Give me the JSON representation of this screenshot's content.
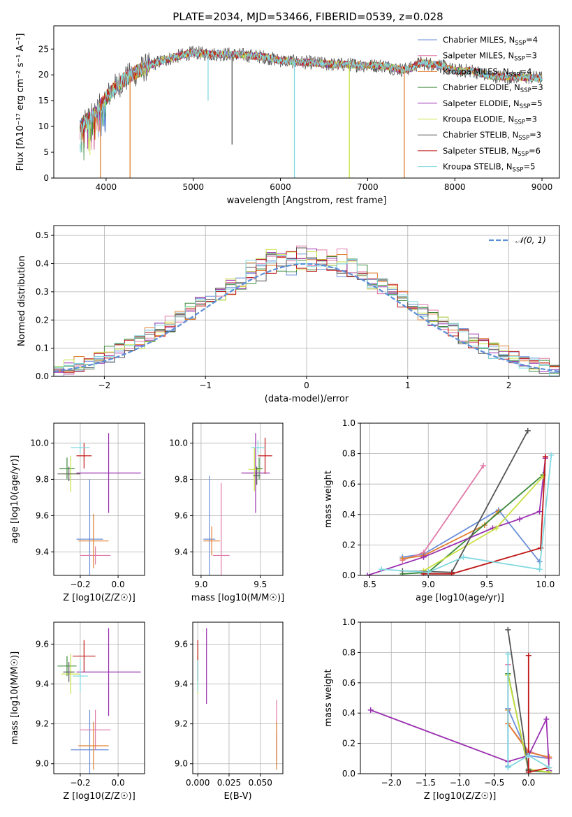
{
  "figure_title": "PLATE=2034, MJD=53466, FIBERID=0539, z=0.028",
  "colors": {
    "Chabrier MILES": "#6a8fd8",
    "Salpeter MILES": "#e07aa8",
    "Kroupa MILES": "#e08030",
    "Chabrier ELODIE": "#3a8a3a",
    "Salpeter ELODIE": "#9a30b0",
    "Kroupa ELODIE": "#c8e040",
    "Chabrier STELIB": "#555555",
    "Salpeter STELIB": "#c01818",
    "Kroupa STELIB": "#80d8e0",
    "normal": "#5b8fd8"
  },
  "chart_data": [
    {
      "id": "spectrum",
      "type": "line",
      "xlabel": "wavelength [Angstrom, rest frame]",
      "ylabel": "Flux [fλ10⁻¹⁷ erg cm⁻² s⁻¹ A⁻¹]",
      "xlim": [
        3400,
        9200
      ],
      "ylim": [
        0,
        29.5
      ],
      "xticks": [
        4000,
        5000,
        6000,
        7000,
        8000,
        9000
      ],
      "yticks": [
        0,
        5,
        10,
        15,
        20,
        25
      ],
      "legend_position": "top-right",
      "series": [
        {
          "name": "Chabrier MILES, N_SSP=4",
          "color_key": "Chabrier MILES"
        },
        {
          "name": "Salpeter MILES, N_SSP=3",
          "color_key": "Salpeter MILES"
        },
        {
          "name": "Kroupa MILES, N_SSP=4",
          "color_key": "Kroupa MILES"
        },
        {
          "name": "Chabrier ELODIE, N_SSP=3",
          "color_key": "Chabrier ELODIE"
        },
        {
          "name": "Salpeter ELODIE, N_SSP=5",
          "color_key": "Salpeter ELODIE"
        },
        {
          "name": "Kroupa ELODIE, N_SSP=3",
          "color_key": "Kroupa ELODIE"
        },
        {
          "name": "Chabrier STELIB, N_SSP=3",
          "color_key": "Chabrier STELIB"
        },
        {
          "name": "Salpeter STELIB, N_SSP=6",
          "color_key": "Salpeter STELIB"
        },
        {
          "name": "Kroupa STELIB, N_SSP=5",
          "color_key": "Kroupa STELIB"
        }
      ],
      "continuum": {
        "x": [
          3700,
          3800,
          3900,
          4000,
          4100,
          4200,
          4300,
          4400,
          4500,
          4600,
          4800,
          5000,
          5200,
          5400,
          5600,
          5800,
          6000,
          6200,
          6400,
          6600,
          6800,
          7000,
          7200,
          7300,
          7400,
          7500,
          7600,
          7800,
          8000,
          8200,
          8400,
          8600,
          8800,
          9000
        ],
        "y": [
          10,
          11.5,
          13,
          15.5,
          17.5,
          19,
          20,
          21,
          21.8,
          22.5,
          23.5,
          24.3,
          24,
          24,
          23.8,
          23.5,
          22.8,
          22.5,
          22.3,
          22,
          22,
          21.8,
          21.8,
          21.3,
          21,
          21.3,
          22.3,
          22,
          20.8,
          20.8,
          19.8,
          19.6,
          19.5,
          19.4
        ]
      },
      "spikes": [
        {
          "x": 3935,
          "y": 0
        },
        {
          "x": 4275,
          "y": 0
        },
        {
          "x": 5170,
          "y": 15
        },
        {
          "x": 5445,
          "y": 6.5
        },
        {
          "x": 6160,
          "y": 0
        },
        {
          "x": 6790,
          "y": 0
        },
        {
          "x": 7420,
          "y": 0
        }
      ]
    },
    {
      "id": "residuals",
      "type": "histogram",
      "xlabel": "(data-model)/error",
      "ylabel": "Normed distribution",
      "xlim": [
        -2.5,
        2.5
      ],
      "ylim": [
        0,
        0.535
      ],
      "xticks": [
        -2,
        -1,
        0,
        1,
        2
      ],
      "yticks": [
        0.0,
        0.1,
        0.2,
        0.3,
        0.4,
        0.5
      ],
      "grid": true,
      "legend_position": "top-right",
      "reference_label": "𝒩(0, 1)",
      "bin_width": 0.1,
      "model_count": 9
    },
    {
      "id": "age-vs-Z",
      "type": "errorbar",
      "xlabel": "Z [log10(Z/Z☉)]",
      "ylabel": "age  [log10(age/yr)]",
      "xlim": [
        -0.34,
        0.14
      ],
      "ylim": [
        9.27,
        10.11
      ],
      "xticks": [
        -0.2,
        0.0
      ],
      "yticks": [
        9.4,
        9.6,
        9.8,
        10.0
      ],
      "grid": true,
      "points": [
        {
          "model": "Chabrier MILES",
          "x": -0.15,
          "y": 9.47,
          "xerr": 0.07,
          "yerr": 0.33
        },
        {
          "model": "Salpeter MILES",
          "x": -0.12,
          "y": 9.38,
          "xerr": 0.08,
          "yerr": 0.05
        },
        {
          "model": "Kroupa MILES",
          "x": -0.13,
          "y": 9.46,
          "xerr": 0.08,
          "yerr": 0.15
        },
        {
          "model": "Chabrier ELODIE",
          "x": -0.27,
          "y": 9.86,
          "xerr": 0.04,
          "yerr": 0.06
        },
        {
          "model": "Salpeter ELODIE",
          "x": -0.05,
          "y": 9.835,
          "xerr": 0.17,
          "yerr": 0.22
        },
        {
          "model": "Kroupa ELODIE",
          "x": -0.25,
          "y": 9.83,
          "xerr": 0.05,
          "yerr": 0.1
        },
        {
          "model": "Chabrier STELIB",
          "x": -0.26,
          "y": 9.83,
          "xerr": 0.06,
          "yerr": 0.04
        },
        {
          "model": "Salpeter STELIB",
          "x": -0.18,
          "y": 9.93,
          "xerr": 0.04,
          "yerr": 0.07
        },
        {
          "model": "Kroupa STELIB",
          "x": -0.2,
          "y": 9.975,
          "xerr": 0.05,
          "yerr": 0.03
        }
      ]
    },
    {
      "id": "age-vs-mass",
      "type": "errorbar",
      "xlabel": "mass [log10(M/M☉)]",
      "ylabel": "",
      "xlim": [
        8.93,
        9.69
      ],
      "ylim": [
        9.27,
        10.11
      ],
      "xticks": [
        9.0,
        9.5
      ],
      "yticks": [
        9.4,
        9.6,
        9.8,
        10.0
      ],
      "grid": true,
      "points": [
        {
          "model": "Chabrier MILES",
          "x": 9.07,
          "y": 9.47,
          "xerr": 0.05,
          "yerr": 0.35
        },
        {
          "model": "Salpeter MILES",
          "x": 9.17,
          "y": 9.38,
          "xerr": 0.07,
          "yerr": 0.4
        },
        {
          "model": "Kroupa MILES",
          "x": 9.09,
          "y": 9.46,
          "xerr": 0.07,
          "yerr": 0.08
        },
        {
          "model": "Chabrier ELODIE",
          "x": 9.49,
          "y": 9.86,
          "xerr": 0.03,
          "yerr": 0.06
        },
        {
          "model": "Salpeter ELODIE",
          "x": 9.46,
          "y": 9.835,
          "xerr": 0.12,
          "yerr": 0.22
        },
        {
          "model": "Kroupa ELODIE",
          "x": 9.45,
          "y": 9.855,
          "xerr": 0.05,
          "yerr": 0.12
        },
        {
          "model": "Chabrier STELIB",
          "x": 9.47,
          "y": 9.82,
          "xerr": 0.03,
          "yerr": 0.05
        },
        {
          "model": "Salpeter STELIB",
          "x": 9.54,
          "y": 9.93,
          "xerr": 0.06,
          "yerr": 0.1
        },
        {
          "model": "Kroupa STELIB",
          "x": 9.48,
          "y": 9.975,
          "xerr": 0.06,
          "yerr": 0.04
        }
      ]
    },
    {
      "id": "weight-vs-age",
      "type": "line",
      "xlabel": "age  [log10(age/yr)]",
      "ylabel": "mass weight",
      "xlim": [
        8.42,
        10.12
      ],
      "ylim": [
        0,
        1.0
      ],
      "xticks": [
        8.5,
        9.0,
        9.5,
        10.0
      ],
      "yticks": [
        0.0,
        0.2,
        0.4,
        0.6,
        0.8,
        1.0
      ],
      "grid": true,
      "series": [
        {
          "model": "Chabrier MILES",
          "x": [
            8.78,
            8.96,
            9.6,
            9.95
          ],
          "y": [
            0.12,
            0.14,
            0.43,
            0.09
          ]
        },
        {
          "model": "Salpeter MILES",
          "x": [
            8.78,
            8.96,
            9.47
          ],
          "y": [
            0.1,
            0.15,
            0.72
          ]
        },
        {
          "model": "Kroupa MILES",
          "x": [
            8.78,
            8.96,
            9.48,
            9.6
          ],
          "y": [
            0.11,
            0.13,
            0.33,
            0.42
          ]
        },
        {
          "model": "Chabrier ELODIE",
          "x": [
            8.78,
            9.0,
            9.98
          ],
          "y": [
            0.01,
            0.02,
            0.66
          ]
        },
        {
          "model": "Salpeter ELODIE",
          "x": [
            8.48,
            8.96,
            9.55,
            9.78,
            9.95,
            10.0
          ],
          "y": [
            0.0,
            0.12,
            0.31,
            0.37,
            0.42,
            0.77
          ]
        },
        {
          "model": "Kroupa ELODIE",
          "x": [
            8.96,
            9.58,
            9.98
          ],
          "y": [
            0.03,
            0.31,
            0.65
          ]
        },
        {
          "model": "Chabrier STELIB",
          "x": [
            8.78,
            9.2,
            9.85
          ],
          "y": [
            0.03,
            0.02,
            0.95
          ]
        },
        {
          "model": "Salpeter STELIB",
          "x": [
            8.96,
            9.2,
            9.96,
            10.0
          ],
          "y": [
            0.01,
            0.01,
            0.18,
            0.78
          ]
        },
        {
          "model": "Kroupa STELIB",
          "x": [
            8.6,
            9.0,
            9.3,
            9.95,
            10.05
          ],
          "y": [
            0.04,
            0.02,
            0.12,
            0.04,
            0.79
          ]
        }
      ]
    },
    {
      "id": "mass-vs-Z",
      "type": "errorbar",
      "xlabel": "Z [log10(Z/Z☉)]",
      "ylabel": "mass [log10(M/M☉)]",
      "xlim": [
        -0.34,
        0.14
      ],
      "ylim": [
        8.95,
        9.71
      ],
      "xticks": [
        -0.2,
        0.0
      ],
      "yticks": [
        9.0,
        9.2,
        9.4,
        9.6
      ],
      "grid": true,
      "points": [
        {
          "model": "Chabrier MILES",
          "x": -0.15,
          "y": 9.07,
          "xerr": 0.1,
          "yerr": 0.2
        },
        {
          "model": "Salpeter MILES",
          "x": -0.12,
          "y": 9.17,
          "xerr": 0.08,
          "yerr": 0.1
        },
        {
          "model": "Kroupa MILES",
          "x": -0.13,
          "y": 9.09,
          "xerr": 0.08,
          "yerr": 0.12
        },
        {
          "model": "Chabrier ELODIE",
          "x": -0.27,
          "y": 9.49,
          "xerr": 0.05,
          "yerr": 0.05
        },
        {
          "model": "Salpeter ELODIE",
          "x": -0.05,
          "y": 9.46,
          "xerr": 0.17,
          "yerr": 0.22
        },
        {
          "model": "Kroupa ELODIE",
          "x": -0.25,
          "y": 9.45,
          "xerr": 0.05,
          "yerr": 0.1
        },
        {
          "model": "Chabrier STELIB",
          "x": -0.26,
          "y": 9.46,
          "xerr": 0.03,
          "yerr": 0.05
        },
        {
          "model": "Salpeter STELIB",
          "x": -0.18,
          "y": 9.54,
          "xerr": 0.06,
          "yerr": 0.08
        },
        {
          "model": "Kroupa STELIB",
          "x": -0.2,
          "y": 9.44,
          "xerr": 0.04,
          "yerr": 0.08
        }
      ]
    },
    {
      "id": "mass-vs-EBV",
      "type": "errorbar",
      "xlabel": "E(B-V)",
      "ylabel": "",
      "xlim": [
        -0.004,
        0.068
      ],
      "ylim": [
        8.95,
        9.71
      ],
      "xticks": [
        0.0,
        0.025,
        0.05
      ],
      "yticks": [
        9.0,
        9.2,
        9.4,
        9.6
      ],
      "grid": true,
      "points": [
        {
          "model": "Chabrier MILES",
          "x": 0.063,
          "y": 9.07,
          "xerr": 0,
          "yerr": 0.08
        },
        {
          "model": "Salpeter MILES",
          "x": 0.063,
          "y": 9.17,
          "xerr": 0,
          "yerr": 0.15
        },
        {
          "model": "Kroupa MILES",
          "x": 0.063,
          "y": 9.09,
          "xerr": 0,
          "yerr": 0.12
        },
        {
          "model": "Chabrier ELODIE",
          "x": 0.0,
          "y": 9.49,
          "xerr": 0,
          "yerr": 0.05
        },
        {
          "model": "Salpeter ELODIE",
          "x": 0.007,
          "y": 9.49,
          "xerr": 0,
          "yerr": 0.19
        },
        {
          "model": "Kroupa ELODIE",
          "x": 0.0,
          "y": 9.45,
          "xerr": 0,
          "yerr": 0.1
        },
        {
          "model": "Chabrier STELIB",
          "x": 0.0,
          "y": 9.46,
          "xerr": 0,
          "yerr": 0.05
        },
        {
          "model": "Salpeter STELIB",
          "x": 0.0,
          "y": 9.52,
          "xerr": 0,
          "yerr": 0.1
        },
        {
          "model": "Kroupa STELIB",
          "x": 0.0,
          "y": 9.44,
          "xerr": 0,
          "yerr": 0.08
        }
      ]
    },
    {
      "id": "weight-vs-Z",
      "type": "line",
      "xlabel": "Z [log10(Z/Z☉)]",
      "ylabel": "mass weight",
      "xlim": [
        -2.45,
        0.45
      ],
      "ylim": [
        0,
        1.0
      ],
      "xticks": [
        -2.0,
        -1.5,
        -1.0,
        -0.5,
        0.0
      ],
      "yticks": [
        0.0,
        0.2,
        0.4,
        0.6,
        0.8,
        1.0
      ],
      "grid": true,
      "series": [
        {
          "model": "Chabrier MILES",
          "x": [
            -0.3,
            -0.3,
            0.0,
            0.3
          ],
          "y": [
            0.05,
            0.43,
            0.12,
            0.1
          ]
        },
        {
          "model": "Salpeter MILES",
          "x": [
            -0.3,
            -0.3,
            0.0,
            0.3
          ],
          "y": [
            0.72,
            0.33,
            0.15,
            0.1
          ]
        },
        {
          "model": "Kroupa MILES",
          "x": [
            -0.3,
            -0.3,
            0.0,
            0.3
          ],
          "y": [
            0.42,
            0.33,
            0.14,
            0.11
          ]
        },
        {
          "model": "Chabrier ELODIE",
          "x": [
            -0.3,
            0.0,
            0.3
          ],
          "y": [
            0.66,
            0.02,
            0.01
          ]
        },
        {
          "model": "Salpeter ELODIE",
          "x": [
            -2.3,
            -0.3,
            0.0,
            0.26,
            0.3
          ],
          "y": [
            0.42,
            0.08,
            0.12,
            0.36,
            0.02
          ]
        },
        {
          "model": "Kroupa ELODIE",
          "x": [
            -0.3,
            0.0,
            0.3
          ],
          "y": [
            0.65,
            0.03,
            0.01
          ]
        },
        {
          "model": "Chabrier STELIB",
          "x": [
            -0.3,
            0.0,
            0.0
          ],
          "y": [
            0.95,
            0.02,
            0.03
          ]
        },
        {
          "model": "Salpeter STELIB",
          "x": [
            0.0,
            0.0,
            0.3
          ],
          "y": [
            0.78,
            0.01,
            0.04
          ]
        },
        {
          "model": "Kroupa STELIB",
          "x": [
            -0.3,
            -0.3,
            0.0,
            0.3
          ],
          "y": [
            0.79,
            0.04,
            0.12,
            0.04
          ]
        }
      ]
    }
  ]
}
